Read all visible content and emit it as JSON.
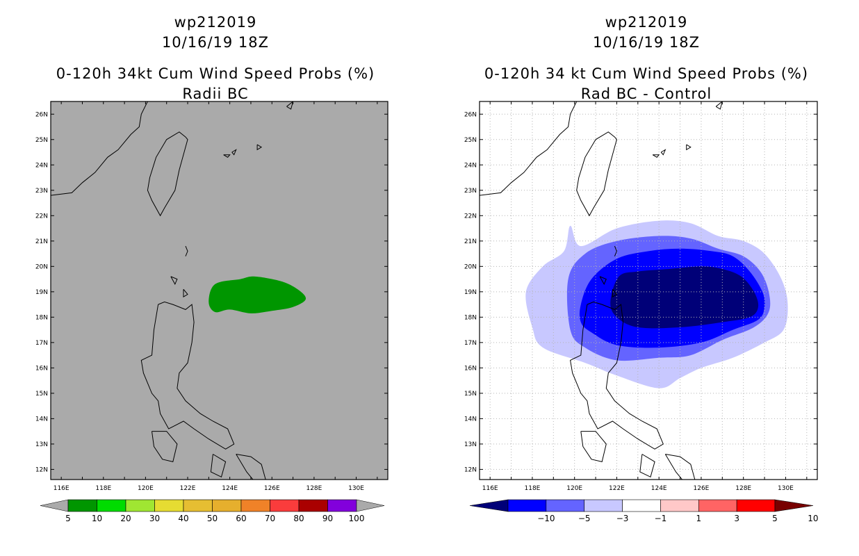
{
  "left_panel": {
    "storm_id": "wp212019",
    "datetime": "10/16/19 18Z",
    "title_line1": "0-120h 34kt Cum Wind Speed Probs (%)",
    "title_line2": "Radii BC"
  },
  "right_panel": {
    "storm_id": "wp212019",
    "datetime": "10/16/19 18Z",
    "title_line1": "0-120h 34 kt Cum Wind Speed Probs (%)",
    "title_line2": "Rad BC - Control"
  },
  "chart_data": [
    {
      "type": "heatmap",
      "title": "0-120h 34kt Cum Wind Speed Probs (%) Radii BC",
      "x_ticks": [
        "116E",
        "118E",
        "120E",
        "122E",
        "124E",
        "126E",
        "128E",
        "130E"
      ],
      "y_ticks": [
        "12N",
        "13N",
        "14N",
        "15N",
        "16N",
        "17N",
        "18N",
        "19N",
        "20N",
        "21N",
        "22N",
        "23N",
        "24N",
        "25N",
        "26N"
      ],
      "xlim": [
        115.5,
        131.5
      ],
      "ylim": [
        11.6,
        26.5
      ],
      "grid": false,
      "background_color": "#aaaaaa",
      "colorbar": {
        "labels": [
          "5",
          "10",
          "20",
          "30",
          "40",
          "50",
          "60",
          "70",
          "80",
          "90",
          "100"
        ],
        "colors": [
          "#009600",
          "#00dc00",
          "#a0e632",
          "#e6dc32",
          "#e6be32",
          "#e6af2d",
          "#f08228",
          "#fa3c3c",
          "#aa0000",
          "#8200dc"
        ]
      },
      "regions": [
        {
          "name": "5-10%",
          "color": "#009600",
          "points": [
            [
              123.0,
              18.6
            ],
            [
              123.3,
              19.3
            ],
            [
              124.5,
              19.5
            ],
            [
              125.2,
              19.6
            ],
            [
              126.5,
              19.4
            ],
            [
              127.3,
              19.05
            ],
            [
              127.6,
              18.7
            ],
            [
              127.0,
              18.4
            ],
            [
              126.0,
              18.25
            ],
            [
              125.0,
              18.15
            ],
            [
              124.0,
              18.3
            ],
            [
              123.3,
              18.2
            ]
          ]
        }
      ]
    },
    {
      "type": "heatmap",
      "title": "0-120h 34 kt Cum Wind Speed Probs (%) Rad BC - Control",
      "x_ticks": [
        "116E",
        "118E",
        "120E",
        "122E",
        "124E",
        "126E",
        "128E",
        "130E"
      ],
      "y_ticks": [
        "12N",
        "13N",
        "14N",
        "15N",
        "16N",
        "17N",
        "18N",
        "19N",
        "20N",
        "21N",
        "22N",
        "23N",
        "24N",
        "25N",
        "26N"
      ],
      "xlim": [
        115.5,
        131.5
      ],
      "ylim": [
        11.6,
        26.5
      ],
      "grid": true,
      "background_color": "#ffffff",
      "colorbar": {
        "labels": [
          "-10",
          "-5",
          "-3",
          "-1",
          "1",
          "3",
          "5",
          "10"
        ],
        "colors": [
          "#000078",
          "#0000ff",
          "#6464ff",
          "#c8c8ff",
          "#ffffff",
          "#ffc8c8",
          "#ff6464",
          "#ff0000",
          "#780000"
        ]
      },
      "regions": [
        {
          "name": "-3 to -1",
          "color": "#c8c8ff",
          "points": [
            [
              117.7,
              19.0
            ],
            [
              118.5,
              20.0
            ],
            [
              119.5,
              20.6
            ],
            [
              119.8,
              21.6
            ],
            [
              120.3,
              20.8
            ],
            [
              122.0,
              21.5
            ],
            [
              124.0,
              21.8
            ],
            [
              125.5,
              21.7
            ],
            [
              126.8,
              21.2
            ],
            [
              128.0,
              21.0
            ],
            [
              129.0,
              20.5
            ],
            [
              129.8,
              19.5
            ],
            [
              130.1,
              18.5
            ],
            [
              129.9,
              17.5
            ],
            [
              129.0,
              17.0
            ],
            [
              127.5,
              16.4
            ],
            [
              126.0,
              16.0
            ],
            [
              125.0,
              15.6
            ],
            [
              124.0,
              15.2
            ],
            [
              122.0,
              15.7
            ],
            [
              120.5,
              16.2
            ],
            [
              118.5,
              16.8
            ],
            [
              118.0,
              17.6
            ]
          ]
        },
        {
          "name": "-5 to -3",
          "color": "#6464ff",
          "points": [
            [
              119.7,
              19.5
            ],
            [
              120.5,
              20.5
            ],
            [
              122.0,
              21.0
            ],
            [
              124.0,
              21.2
            ],
            [
              125.5,
              21.1
            ],
            [
              126.8,
              20.7
            ],
            [
              128.0,
              20.4
            ],
            [
              128.8,
              19.8
            ],
            [
              129.2,
              19.0
            ],
            [
              129.2,
              18.2
            ],
            [
              128.5,
              17.6
            ],
            [
              127.0,
              17.1
            ],
            [
              125.5,
              16.5
            ],
            [
              124.0,
              16.4
            ],
            [
              122.0,
              16.3
            ],
            [
              120.5,
              16.8
            ],
            [
              119.8,
              17.5
            ]
          ]
        },
        {
          "name": "-10 to -5",
          "color": "#0000ff",
          "points": [
            [
              120.3,
              18.5
            ],
            [
              120.8,
              19.5
            ],
            [
              122.0,
              20.3
            ],
            [
              123.5,
              20.6
            ],
            [
              125.0,
              20.7
            ],
            [
              126.5,
              20.6
            ],
            [
              127.5,
              20.4
            ],
            [
              128.3,
              19.8
            ],
            [
              128.9,
              19.0
            ],
            [
              129.0,
              18.4
            ],
            [
              128.7,
              17.9
            ],
            [
              127.5,
              17.5
            ],
            [
              126.0,
              17.0
            ],
            [
              124.0,
              16.8
            ],
            [
              122.0,
              16.9
            ],
            [
              120.8,
              17.4
            ],
            [
              120.3,
              17.8
            ]
          ]
        },
        {
          "name": "< -10",
          "color": "#000078",
          "points": [
            [
              121.7,
              18.6
            ],
            [
              122.1,
              19.6
            ],
            [
              123.0,
              19.8
            ],
            [
              124.5,
              19.9
            ],
            [
              126.0,
              20.0
            ],
            [
              127.0,
              19.9
            ],
            [
              127.9,
              19.6
            ],
            [
              128.5,
              19.0
            ],
            [
              128.7,
              18.4
            ],
            [
              128.3,
              18.0
            ],
            [
              127.0,
              17.8
            ],
            [
              125.0,
              17.6
            ],
            [
              123.0,
              17.6
            ],
            [
              122.0,
              18.0
            ]
          ]
        }
      ]
    }
  ]
}
